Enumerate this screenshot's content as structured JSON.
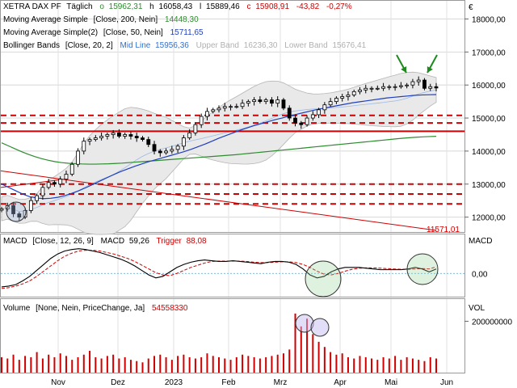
{
  "chart_data": {
    "type": "candlestick",
    "currency_symbol": "€",
    "header": {
      "symbol": "XETRA DAX PF",
      "interval": "Täglich",
      "o_label": "o",
      "o": "15962,31",
      "h_label": "h",
      "h": "16058,43",
      "l_label": "l",
      "l": "15889,46",
      "c_label": "c",
      "c": "15908,91",
      "change": "-43,82",
      "change_pct": "-0,27%"
    },
    "indicators": [
      {
        "label": "Moving Average Simple",
        "params": "[Close, 200, Nein]",
        "value": "14448,30",
        "color": "#2e8b2e"
      },
      {
        "label": "Moving Average Simple(2)",
        "params": "[Close, 50, Nein]",
        "value": "15711,65",
        "color": "#1f3fbf"
      },
      {
        "label": "Bollinger Bands",
        "params": "[Close, 20, 2]",
        "mid_label": "Mid Line",
        "mid": "15956,36",
        "upper_label": "Upper Band",
        "upper": "16236,30",
        "lower_label": "Lower Band",
        "lower": "15676,41"
      }
    ],
    "price_axis": {
      "ticks": [
        12000,
        13000,
        14000,
        15000,
        16000,
        17000,
        18000
      ],
      "tick_labels": [
        "12000,00",
        "13000,00",
        "14000,00",
        "15000,00",
        "16000,00",
        "17000,00",
        "18000,00"
      ],
      "ylim": [
        11550,
        18550
      ]
    },
    "trendline_value_label": "11571,01",
    "horizontal_lines": [
      {
        "value": 15080,
        "style": "dashed"
      },
      {
        "value": 14850,
        "style": "dashed"
      },
      {
        "value": 14600,
        "style": "solid"
      },
      {
        "value": 13000,
        "style": "dashed"
      },
      {
        "value": 12700,
        "style": "dashed"
      },
      {
        "value": 12400,
        "style": "dashed"
      }
    ],
    "month_labels": [
      "Nov",
      "Dez",
      "2023",
      "Feb",
      "Mrz",
      "Apr",
      "Mai",
      "Jun"
    ],
    "close_series": [
      12250,
      12350,
      12100,
      12000,
      12200,
      12500,
      12650,
      12900,
      13050,
      13000,
      13150,
      13300,
      13600,
      14000,
      14300,
      14350,
      14400,
      14450,
      14500,
      14550,
      14450,
      14500,
      14450,
      14400,
      14350,
      14200,
      14000,
      13950,
      14000,
      14050,
      14150,
      14400,
      14550,
      14800,
      15050,
      15200,
      15250,
      15300,
      15350,
      15350,
      15350,
      15450,
      15500,
      15550,
      15500,
      15550,
      15450,
      15550,
      15300,
      15000,
      14850,
      14800,
      15000,
      15100,
      15250,
      15400,
      15500,
      15600,
      15650,
      15700,
      15800,
      15850,
      15900,
      15900,
      15900,
      15950,
      15950,
      15950,
      15980,
      16000,
      16100,
      16150,
      15900,
      15950,
      15910
    ],
    "sma200_series": [
      14250,
      14160,
      14070,
      13980,
      13900,
      13830,
      13770,
      13720,
      13680,
      13650,
      13630,
      13620,
      13610,
      13605,
      13605,
      13610,
      13615,
      13625,
      13635,
      13650,
      13665,
      13680,
      13695,
      13710,
      13725,
      13740,
      13755,
      13770,
      13785,
      13800,
      13815,
      13830,
      13845,
      13860,
      13875,
      13890,
      13910,
      13930,
      13950,
      13970,
      13990,
      14010,
      14030,
      14050,
      14070,
      14090,
      14110,
      14130,
      14150,
      14170,
      14190,
      14210,
      14230,
      14250,
      14270,
      14290,
      14310,
      14330,
      14350,
      14370,
      14390,
      14405,
      14420,
      14430,
      14440,
      14448
    ],
    "sma50_series": [
      13000,
      12900,
      12800,
      12700,
      12620,
      12580,
      12560,
      12570,
      12600,
      12650,
      12720,
      12800,
      12890,
      12990,
      13090,
      13190,
      13290,
      13380,
      13460,
      13540,
      13610,
      13680,
      13740,
      13800,
      13860,
      13920,
      13980,
      14050,
      14130,
      14210,
      14300,
      14390,
      14470,
      14550,
      14630,
      14700,
      14770,
      14830,
      14890,
      14950,
      15000,
      15060,
      15110,
      15160,
      15210,
      15260,
      15300,
      15340,
      15380,
      15420,
      15460,
      15490,
      15520,
      15550,
      15580,
      15610,
      15630,
      15650,
      15670,
      15690,
      15700,
      15706,
      15711
    ],
    "macd": {
      "label": "MACD",
      "params": "[Close, 12, 26, 9]",
      "macd_label": "MACD",
      "macd_value": "59,26",
      "trigger_label": "Trigger",
      "trigger_value": "88,08",
      "axis_label": "MACD",
      "ticks": [
        0
      ],
      "tick_labels": [
        "0,00"
      ],
      "ylim": [
        -300,
        500
      ],
      "macd_series": [
        -180,
        -170,
        -150,
        -100,
        -40,
        40,
        120,
        200,
        260,
        300,
        320,
        330,
        320,
        300,
        280,
        250,
        220,
        190,
        150,
        100,
        40,
        -20,
        -60,
        -40,
        20,
        80,
        120,
        150,
        170,
        180,
        170,
        160,
        160,
        170,
        160,
        150,
        140,
        130,
        150,
        160,
        160,
        150,
        120,
        60,
        -20,
        -60,
        -40,
        20,
        60,
        80,
        80,
        80,
        70,
        60,
        50,
        50,
        50,
        50,
        60,
        80,
        60,
        20,
        59
      ],
      "trigger_series": [
        -200,
        -190,
        -170,
        -140,
        -100,
        -40,
        30,
        100,
        170,
        230,
        270,
        300,
        310,
        310,
        300,
        280,
        260,
        230,
        200,
        160,
        110,
        60,
        10,
        -20,
        -30,
        0,
        40,
        80,
        110,
        140,
        160,
        165,
        165,
        165,
        165,
        160,
        150,
        145,
        145,
        150,
        155,
        155,
        145,
        120,
        80,
        30,
        -10,
        -20,
        0,
        30,
        55,
        70,
        75,
        75,
        70,
        65,
        60,
        55,
        55,
        60,
        65,
        60,
        88
      ]
    },
    "volume": {
      "label": "Volume",
      "params": "[None, Nein, PriceChange, Ja]",
      "value": "54558330",
      "axis_label": "VOL",
      "ticks": [
        200000000
      ],
      "tick_labels": [
        "200000000"
      ],
      "ylim": [
        0,
        280000000
      ],
      "values": [
        60,
        55,
        70,
        50,
        65,
        60,
        80,
        55,
        70,
        60,
        75,
        65,
        50,
        60,
        70,
        85,
        60,
        55,
        65,
        70,
        55,
        60,
        50,
        45,
        40,
        55,
        65,
        70,
        60,
        50,
        65,
        70,
        60,
        55,
        60,
        75,
        65,
        60,
        55,
        50,
        60,
        70,
        65,
        60,
        55,
        60,
        65,
        70,
        75,
        90,
        230,
        180,
        210,
        150,
        120,
        100,
        80,
        70,
        75,
        60,
        55,
        65,
        60,
        55,
        50,
        60,
        55,
        65,
        50,
        60,
        55,
        50,
        45,
        60,
        55
      ]
    }
  }
}
